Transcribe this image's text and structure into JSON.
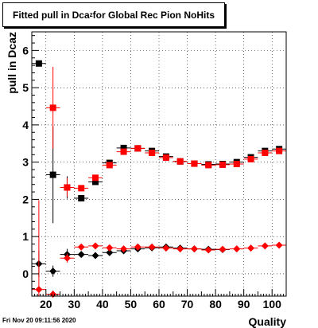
{
  "title": {
    "prefix": "Fitted pull in Dca",
    "subscript": "z",
    "suffix": " for Global Rec Pion NoHits"
  },
  "footer": {
    "timestamp": "Fri Nov 20 09:11:56 2020"
  },
  "colors": {
    "black_series": "#000000",
    "red_series": "#ff0000",
    "grid": "#000000",
    "background": "#ffffff"
  },
  "chart_data": {
    "type": "scatter",
    "title": "Fitted pull in Dcaz for Global Rec Pion NoHits",
    "xlabel": "Quality",
    "ylabel": "pull in Dcaz",
    "xlim": [
      15,
      105
    ],
    "ylim": [
      -0.6,
      6.5
    ],
    "grid": true,
    "xticks": [
      20,
      30,
      40,
      50,
      60,
      70,
      80,
      90,
      100
    ],
    "yticks": [
      0,
      1,
      2,
      3,
      4,
      5,
      6
    ],
    "series": [
      {
        "marker": "square",
        "color": "#000000",
        "points": [
          {
            "x": 17.5,
            "y": 5.65,
            "err": 0.0
          },
          {
            "x": 22.5,
            "y": 2.66,
            "err": 1.3
          },
          {
            "x": 27.5,
            "y": 2.32,
            "err": 0.3
          },
          {
            "x": 32.5,
            "y": 2.03,
            "err": 0.05
          },
          {
            "x": 37.5,
            "y": 2.47,
            "err": 0.05
          },
          {
            "x": 42.5,
            "y": 2.98,
            "err": 0.04
          },
          {
            "x": 47.5,
            "y": 3.38,
            "err": 0.03
          },
          {
            "x": 52.5,
            "y": 3.37,
            "err": 0.03
          },
          {
            "x": 57.5,
            "y": 3.3,
            "err": 0.03
          },
          {
            "x": 62.5,
            "y": 3.15,
            "err": 0.03
          },
          {
            "x": 67.5,
            "y": 3.02,
            "err": 0.03
          },
          {
            "x": 72.5,
            "y": 2.96,
            "err": 0.03
          },
          {
            "x": 77.5,
            "y": 2.94,
            "err": 0.03
          },
          {
            "x": 82.5,
            "y": 2.95,
            "err": 0.03
          },
          {
            "x": 87.5,
            "y": 3.0,
            "err": 0.03
          },
          {
            "x": 92.5,
            "y": 3.13,
            "err": 0.03
          },
          {
            "x": 97.5,
            "y": 3.3,
            "err": 0.03
          },
          {
            "x": 102.5,
            "y": 3.35,
            "err": 0.03
          }
        ]
      },
      {
        "marker": "square",
        "color": "#ff0000",
        "points": [
          {
            "x": 22.5,
            "y": 4.46,
            "err": 1.1
          },
          {
            "x": 27.5,
            "y": 2.32,
            "err": 0.25
          },
          {
            "x": 32.5,
            "y": 2.3,
            "err": 0.05
          },
          {
            "x": 37.5,
            "y": 2.58,
            "err": 0.05
          },
          {
            "x": 42.5,
            "y": 2.92,
            "err": 0.04
          },
          {
            "x": 47.5,
            "y": 3.28,
            "err": 0.03
          },
          {
            "x": 52.5,
            "y": 3.37,
            "err": 0.03
          },
          {
            "x": 57.5,
            "y": 3.25,
            "err": 0.03
          },
          {
            "x": 62.5,
            "y": 3.12,
            "err": 0.03
          },
          {
            "x": 67.5,
            "y": 3.02,
            "err": 0.03
          },
          {
            "x": 72.5,
            "y": 2.96,
            "err": 0.03
          },
          {
            "x": 77.5,
            "y": 2.92,
            "err": 0.03
          },
          {
            "x": 82.5,
            "y": 2.93,
            "err": 0.03
          },
          {
            "x": 87.5,
            "y": 2.95,
            "err": 0.03
          },
          {
            "x": 92.5,
            "y": 3.08,
            "err": 0.03
          },
          {
            "x": 97.5,
            "y": 3.25,
            "err": 0.03
          },
          {
            "x": 102.5,
            "y": 3.3,
            "err": 0.03
          }
        ]
      },
      {
        "marker": "diamond",
        "color": "#000000",
        "points": [
          {
            "x": 17.5,
            "y": 0.27,
            "err": 0.35
          },
          {
            "x": 22.5,
            "y": 0.07,
            "err": 0.15
          },
          {
            "x": 27.5,
            "y": 0.52,
            "err": 0.15
          },
          {
            "x": 32.5,
            "y": 0.52,
            "err": 0.03
          },
          {
            "x": 37.5,
            "y": 0.49,
            "err": 0.03
          },
          {
            "x": 42.5,
            "y": 0.57,
            "err": 0.02
          },
          {
            "x": 47.5,
            "y": 0.62,
            "err": 0.02
          },
          {
            "x": 52.5,
            "y": 0.67,
            "err": 0.02
          },
          {
            "x": 57.5,
            "y": 0.7,
            "err": 0.02
          },
          {
            "x": 62.5,
            "y": 0.72,
            "err": 0.02
          },
          {
            "x": 67.5,
            "y": 0.69,
            "err": 0.02
          },
          {
            "x": 72.5,
            "y": 0.67,
            "err": 0.02
          },
          {
            "x": 77.5,
            "y": 0.66,
            "err": 0.02
          },
          {
            "x": 82.5,
            "y": 0.65,
            "err": 0.02
          }
        ]
      },
      {
        "marker": "diamond",
        "color": "#ff0000",
        "points": [
          {
            "x": 17.5,
            "y": -0.42,
            "err": 2.4
          },
          {
            "x": 22.5,
            "y": -0.55,
            "err": 0.1
          },
          {
            "x": 27.5,
            "y": 0.42,
            "err": 0.12
          },
          {
            "x": 32.5,
            "y": 0.72,
            "err": 0.03
          },
          {
            "x": 37.5,
            "y": 0.75,
            "err": 0.03
          },
          {
            "x": 42.5,
            "y": 0.7,
            "err": 0.02
          },
          {
            "x": 47.5,
            "y": 0.67,
            "err": 0.02
          },
          {
            "x": 52.5,
            "y": 0.72,
            "err": 0.02
          },
          {
            "x": 57.5,
            "y": 0.72,
            "err": 0.02
          },
          {
            "x": 62.5,
            "y": 0.69,
            "err": 0.02
          },
          {
            "x": 67.5,
            "y": 0.67,
            "err": 0.02
          },
          {
            "x": 72.5,
            "y": 0.67,
            "err": 0.02
          },
          {
            "x": 77.5,
            "y": 0.64,
            "err": 0.02
          },
          {
            "x": 82.5,
            "y": 0.66,
            "err": 0.02
          },
          {
            "x": 87.5,
            "y": 0.67,
            "err": 0.02
          },
          {
            "x": 92.5,
            "y": 0.69,
            "err": 0.02
          },
          {
            "x": 97.5,
            "y": 0.75,
            "err": 0.02
          },
          {
            "x": 102.5,
            "y": 0.77,
            "err": 0.02
          }
        ]
      }
    ]
  }
}
